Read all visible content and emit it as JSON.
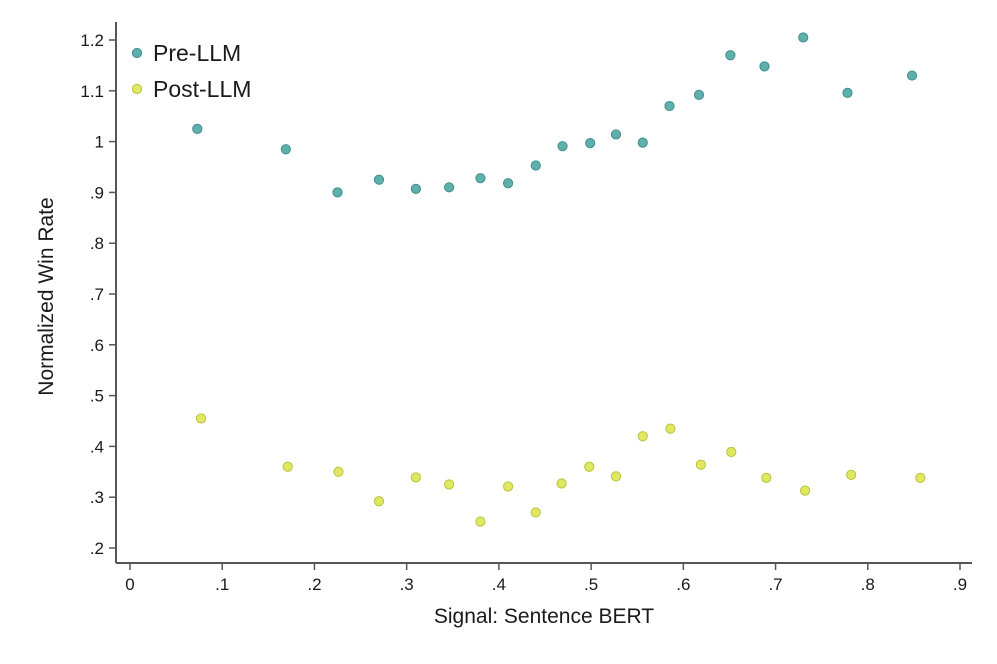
{
  "chart_data": {
    "type": "scatter",
    "xlabel": "Signal: Sentence BERT",
    "ylabel": "Normalized Win Rate",
    "xlim": [
      -0.015,
      0.915
    ],
    "ylim": [
      0.17,
      1.235
    ],
    "x_ticks": [
      0,
      0.1,
      0.2,
      0.3,
      0.4,
      0.5,
      0.6,
      0.7,
      0.8,
      0.9
    ],
    "x_tick_labels": [
      "0",
      ".1",
      ".2",
      ".3",
      ".4",
      ".5",
      ".6",
      ".7",
      ".8",
      ".9"
    ],
    "y_ticks": [
      0.2,
      0.3,
      0.4,
      0.5,
      0.6,
      0.7,
      0.8,
      0.9,
      1.0,
      1.1,
      1.2
    ],
    "y_tick_labels": [
      ".2",
      ".3",
      ".4",
      ".5",
      ".6",
      ".7",
      ".8",
      ".9",
      "1",
      "1.1",
      "1.2"
    ],
    "grid": false,
    "legend_position": "top-left",
    "series": [
      {
        "name": "Pre-LLM",
        "color": "#5fb0ad",
        "stroke": "#3f8f8c",
        "x": [
          0.073,
          0.169,
          0.225,
          0.27,
          0.31,
          0.346,
          0.38,
          0.41,
          0.44,
          0.469,
          0.499,
          0.527,
          0.556,
          0.585,
          0.617,
          0.651,
          0.688,
          0.73,
          0.778,
          0.848
        ],
        "y": [
          1.025,
          0.985,
          0.9,
          0.925,
          0.907,
          0.91,
          0.928,
          0.918,
          0.953,
          0.991,
          0.997,
          1.014,
          0.998,
          1.07,
          1.092,
          1.17,
          1.148,
          1.205,
          1.096,
          1.13
        ]
      },
      {
        "name": "Post-LLM",
        "color": "#dfe860",
        "stroke": "#b8c23c",
        "x": [
          0.077,
          0.171,
          0.226,
          0.27,
          0.31,
          0.346,
          0.38,
          0.41,
          0.44,
          0.468,
          0.498,
          0.527,
          0.556,
          0.586,
          0.619,
          0.652,
          0.69,
          0.732,
          0.782,
          0.857
        ],
        "y": [
          0.455,
          0.36,
          0.35,
          0.292,
          0.339,
          0.325,
          0.252,
          0.321,
          0.27,
          0.327,
          0.36,
          0.341,
          0.42,
          0.435,
          0.364,
          0.389,
          0.338,
          0.313,
          0.344,
          0.338
        ]
      }
    ]
  }
}
